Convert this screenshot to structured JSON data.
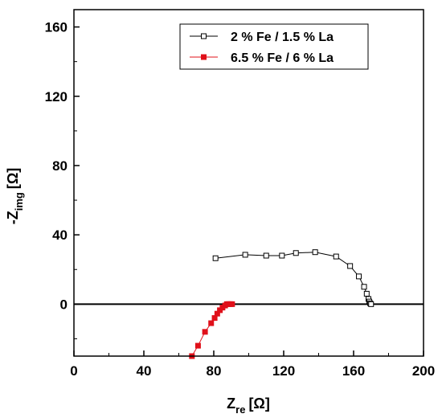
{
  "chart_data": {
    "type": "scatter",
    "title": "",
    "xlabel": {
      "main": "Z",
      "sub": "re",
      "unit": "[Ω]"
    },
    "ylabel": {
      "prefix": "-Z",
      "sub": "img",
      "unit": "[Ω]"
    },
    "xlim": [
      0,
      200
    ],
    "ylim": [
      -30,
      170
    ],
    "xticks": [
      "0",
      "40",
      "80",
      "120",
      "160",
      "200"
    ],
    "yticks": [
      "0",
      "40",
      "80",
      "120",
      "160"
    ],
    "xtick_values": [
      0,
      40,
      80,
      120,
      160,
      200
    ],
    "ytick_values": [
      0,
      40,
      80,
      120,
      160
    ],
    "grid": false,
    "legend": "top-right",
    "zero_line": true,
    "series": [
      {
        "name": "2 % Fe / 1.5 % La",
        "color": "#000000",
        "marker": "open-square",
        "points": [
          [
            81,
            26.5
          ],
          [
            98,
            28.5
          ],
          [
            110,
            28
          ],
          [
            119,
            28
          ],
          [
            127,
            29.5
          ],
          [
            138,
            30
          ],
          [
            150,
            27.5
          ],
          [
            158,
            22
          ],
          [
            163,
            16
          ],
          [
            166,
            10
          ],
          [
            167.5,
            6
          ],
          [
            168.5,
            3
          ],
          [
            169,
            1.5
          ],
          [
            169.5,
            0.5
          ],
          [
            170,
            0
          ]
        ]
      },
      {
        "name": "6.5 % Fe / 6 % La",
        "color": "#e0101a",
        "marker": "filled-square",
        "points": [
          [
            67.5,
            -30
          ],
          [
            71,
            -24
          ],
          [
            75,
            -16
          ],
          [
            78.5,
            -11
          ],
          [
            80.5,
            -8
          ],
          [
            82,
            -5.5
          ],
          [
            83.5,
            -3.5
          ],
          [
            85,
            -2
          ],
          [
            86.5,
            -0.8
          ],
          [
            87.5,
            0
          ],
          [
            88.5,
            0
          ],
          [
            89.5,
            0
          ],
          [
            90.5,
            0
          ]
        ]
      }
    ]
  }
}
